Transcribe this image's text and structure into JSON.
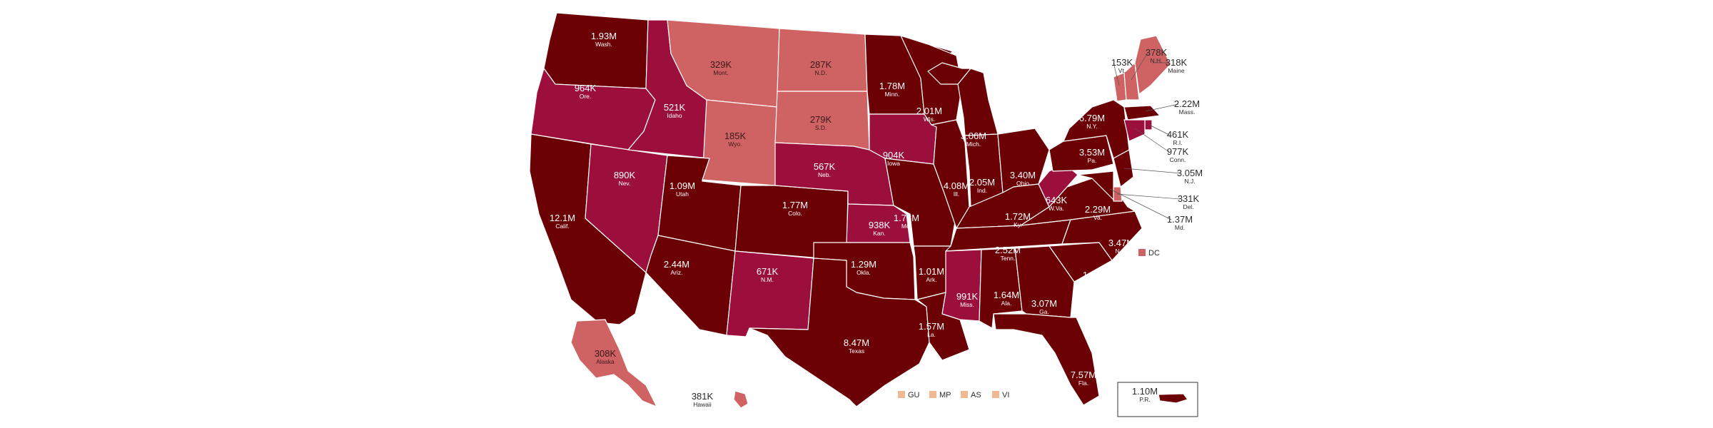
{
  "colors": {
    "dark": "#6b0104",
    "mid": "#9c0f3d",
    "light": "#cf6262",
    "territory": "#f0b893",
    "border": "#ffffff"
  },
  "states": [
    {
      "id": "wa",
      "value": "1.93M",
      "abbr": "Wash.",
      "fill": "dark"
    },
    {
      "id": "or",
      "value": "964K",
      "abbr": "Ore.",
      "fill": "mid"
    },
    {
      "id": "ca",
      "value": "12.1M",
      "abbr": "Calif.",
      "fill": "dark"
    },
    {
      "id": "nv",
      "value": "890K",
      "abbr": "Nev.",
      "fill": "mid"
    },
    {
      "id": "id",
      "value": "521K",
      "abbr": "Idaho",
      "fill": "mid"
    },
    {
      "id": "mt",
      "value": "329K",
      "abbr": "Mont.",
      "fill": "light"
    },
    {
      "id": "wy",
      "value": "185K",
      "abbr": "Wyo.",
      "fill": "light"
    },
    {
      "id": "ut",
      "value": "1.09M",
      "abbr": "Utah",
      "fill": "dark"
    },
    {
      "id": "co",
      "value": "1.77M",
      "abbr": "Colo.",
      "fill": "dark"
    },
    {
      "id": "az",
      "value": "2.44M",
      "abbr": "Ariz.",
      "fill": "dark"
    },
    {
      "id": "nm",
      "value": "671K",
      "abbr": "N.M.",
      "fill": "mid"
    },
    {
      "id": "nd",
      "value": "287K",
      "abbr": "N.D.",
      "fill": "light"
    },
    {
      "id": "sd",
      "value": "279K",
      "abbr": "S.D.",
      "fill": "light"
    },
    {
      "id": "ne",
      "value": "567K",
      "abbr": "Neb.",
      "fill": "mid"
    },
    {
      "id": "ks",
      "value": "938K",
      "abbr": "Kan.",
      "fill": "mid"
    },
    {
      "id": "ok",
      "value": "1.29M",
      "abbr": "Okla.",
      "fill": "dark"
    },
    {
      "id": "tx",
      "value": "8.47M",
      "abbr": "Texas",
      "fill": "dark"
    },
    {
      "id": "mn",
      "value": "1.78M",
      "abbr": "Minn.",
      "fill": "dark"
    },
    {
      "id": "ia",
      "value": "904K",
      "abbr": "Iowa",
      "fill": "mid"
    },
    {
      "id": "mo",
      "value": "1.78M",
      "abbr": "Mo.",
      "fill": "dark"
    },
    {
      "id": "ar",
      "value": "1.01M",
      "abbr": "Ark.",
      "fill": "dark"
    },
    {
      "id": "la",
      "value": "1.57M",
      "abbr": "La.",
      "fill": "dark"
    },
    {
      "id": "wi",
      "value": "2.01M",
      "abbr": "Wis.",
      "fill": "dark"
    },
    {
      "id": "il",
      "value": "4.08M",
      "abbr": "Ill.",
      "fill": "dark"
    },
    {
      "id": "mi",
      "value": "3.06M",
      "abbr": "Mich.",
      "fill": "dark"
    },
    {
      "id": "in",
      "value": "2.05M",
      "abbr": "Ind.",
      "fill": "dark"
    },
    {
      "id": "oh",
      "value": "3.40M",
      "abbr": "Ohio",
      "fill": "dark"
    },
    {
      "id": "ky",
      "value": "1.72M",
      "abbr": "Ky.",
      "fill": "dark"
    },
    {
      "id": "tn",
      "value": "2.52M",
      "abbr": "Tenn.",
      "fill": "dark"
    },
    {
      "id": "ms",
      "value": "991K",
      "abbr": "Miss.",
      "fill": "mid"
    },
    {
      "id": "al",
      "value": "1.64M",
      "abbr": "Ala.",
      "fill": "dark"
    },
    {
      "id": "ga",
      "value": "3.07M",
      "abbr": "Ga.",
      "fill": "dark"
    },
    {
      "id": "fl",
      "value": "7.57M",
      "abbr": "Fla.",
      "fill": "dark"
    },
    {
      "id": "sc",
      "value": "1.84M",
      "abbr": "S.C.",
      "fill": "dark"
    },
    {
      "id": "nc",
      "value": "3.47M",
      "abbr": "N.C.",
      "fill": "dark"
    },
    {
      "id": "va",
      "value": "2.29M",
      "abbr": "Va.",
      "fill": "dark"
    },
    {
      "id": "wv",
      "value": "643K",
      "abbr": "W.Va.",
      "fill": "mid"
    },
    {
      "id": "pa",
      "value": "3.53M",
      "abbr": "Pa.",
      "fill": "dark"
    },
    {
      "id": "ny",
      "value": "6.79M",
      "abbr": "N.Y.",
      "fill": "dark"
    },
    {
      "id": "ak",
      "value": "308K",
      "abbr": "Alaska",
      "fill": "light"
    }
  ],
  "external": [
    {
      "id": "vt",
      "value": "153K",
      "abbr": "Vt.",
      "fill": "light"
    },
    {
      "id": "nh",
      "value": "378K",
      "abbr": "N.H.",
      "fill": "light"
    },
    {
      "id": "me",
      "value": "318K",
      "abbr": "Maine",
      "fill": "light"
    },
    {
      "id": "ma",
      "value": "2.22M",
      "abbr": "Mass.",
      "fill": "dark"
    },
    {
      "id": "ri",
      "value": "461K",
      "abbr": "R.I.",
      "fill": "mid"
    },
    {
      "id": "ct",
      "value": "977K",
      "abbr": "Conn.",
      "fill": "mid"
    },
    {
      "id": "nj",
      "value": "3.05M",
      "abbr": "N.J.",
      "fill": "dark"
    },
    {
      "id": "de",
      "value": "331K",
      "abbr": "Del.",
      "fill": "light"
    },
    {
      "id": "md",
      "value": "1.37M",
      "abbr": "Md.",
      "fill": "dark"
    },
    {
      "id": "hi",
      "value": "381K",
      "abbr": "Hawaii",
      "fill": "light"
    },
    {
      "id": "pr",
      "value": "1.10M",
      "abbr": "P.R.",
      "fill": "dark"
    }
  ],
  "legend": {
    "dc": {
      "label": "DC",
      "fill": "light"
    },
    "territories": [
      {
        "label": "GU",
        "fill": "territory"
      },
      {
        "label": "MP",
        "fill": "territory"
      },
      {
        "label": "AS",
        "fill": "territory"
      },
      {
        "label": "VI",
        "fill": "territory"
      }
    ]
  }
}
